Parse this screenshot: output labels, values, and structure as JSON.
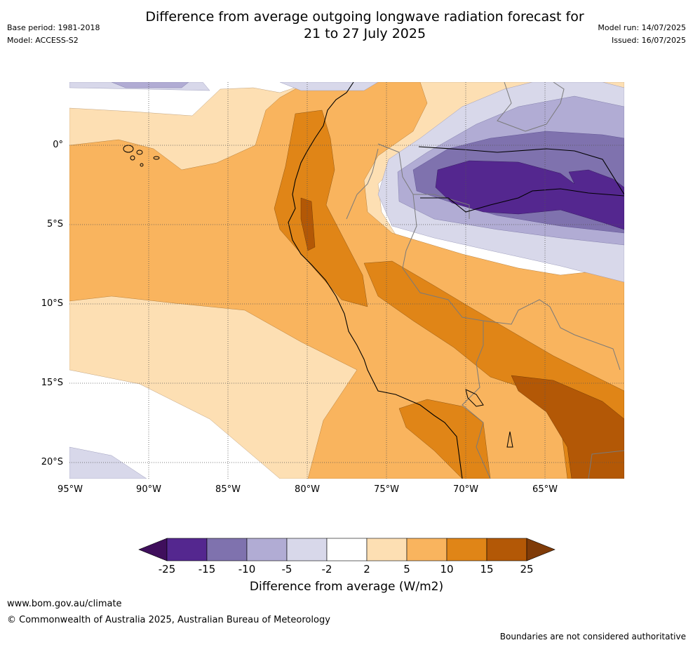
{
  "title_line1": "Difference from average outgoing longwave radiation forecast for",
  "title_line2": "21 to 27 July 2025",
  "meta_left": {
    "base_period": "Base period: 1981-2018",
    "model": "Model: ACCESS-S2"
  },
  "meta_right": {
    "model_run": "Model run: 14/07/2025",
    "issued": "Issued: 16/07/2025"
  },
  "map": {
    "lat_labels": [
      "0°",
      "5°S",
      "10°S",
      "15°S",
      "20°S"
    ],
    "lon_labels": [
      "95°W",
      "90°W",
      "85°W",
      "80°W",
      "75°W",
      "70°W",
      "65°W"
    ],
    "grid": "dotted",
    "land_borders": "grey",
    "coastline": "black"
  },
  "colorbar": {
    "labels": [
      "-25",
      "-15",
      "-10",
      "-5",
      "-2",
      "2",
      "5",
      "10",
      "15",
      "25"
    ],
    "colors": [
      "#3f0f5c",
      "#54278f",
      "#7f72ae",
      "#b1acd4",
      "#d8d8ea",
      "#ffffff",
      "#fddfb3",
      "#f9b45e",
      "#e08517",
      "#b35806",
      "#7f3b08"
    ],
    "title": "Difference from average (W/m2)",
    "extend": "both"
  },
  "footer": {
    "url": "www.bom.gov.au/climate",
    "copyright": "© Commonwealth of Australia 2025, Australian Bureau of Meteorology",
    "disclaimer": "Boundaries are not considered authoritative"
  }
}
